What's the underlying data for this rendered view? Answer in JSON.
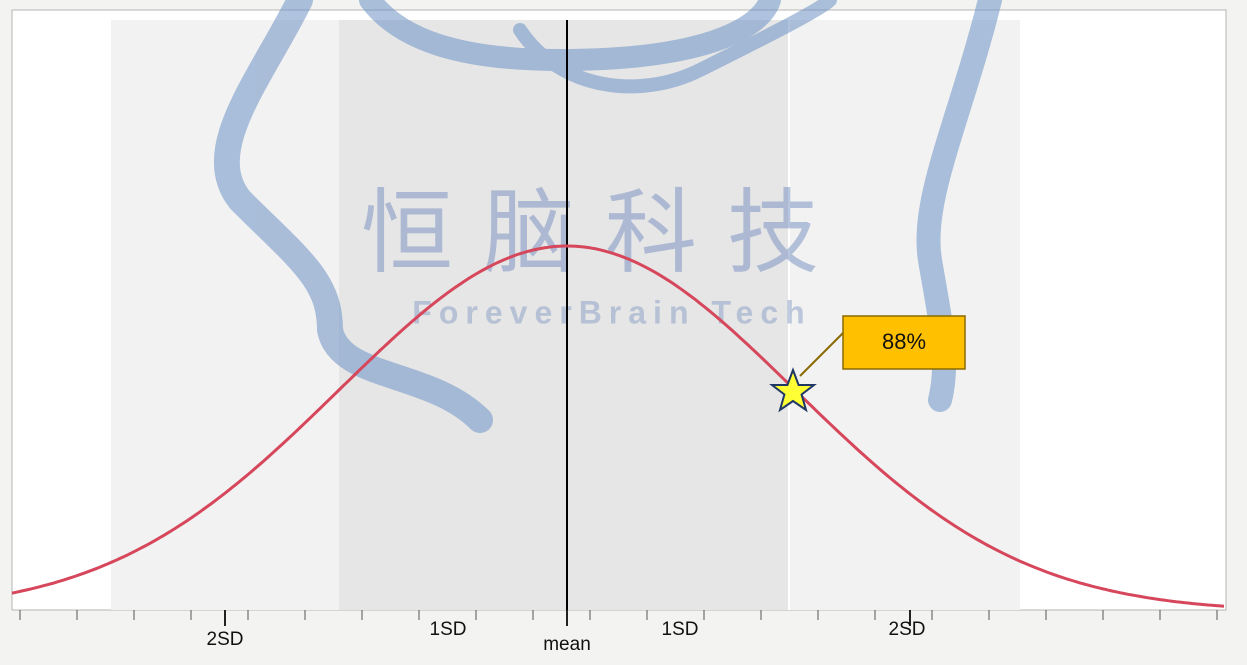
{
  "axis_labels": [
    "2SD",
    "1SD",
    "mean",
    "1SD",
    "2SD"
  ],
  "marker_label": "88%",
  "watermark": {
    "title": "恒脑科技",
    "subtitle": "ForeverBrain Tech"
  }
}
